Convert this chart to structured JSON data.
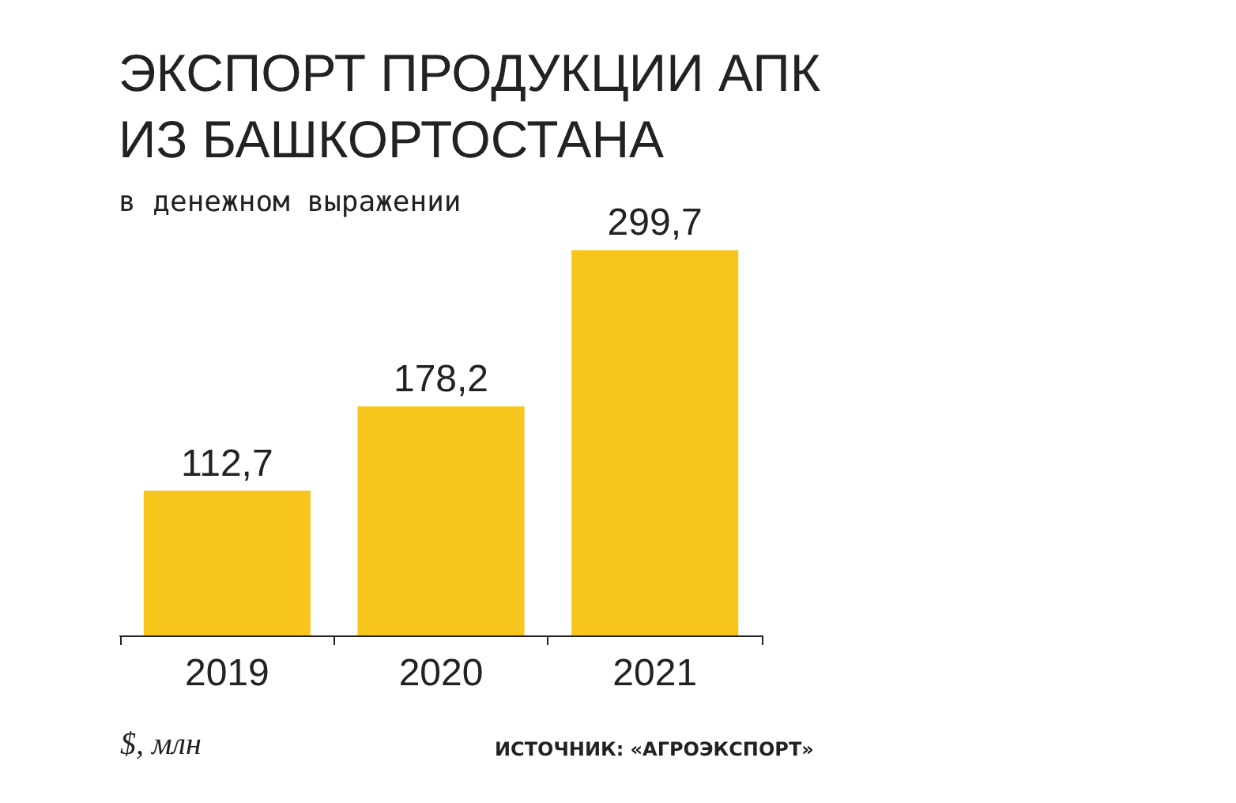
{
  "chart_data": {
    "type": "bar",
    "title": "ЭКСПОРТ ПРОДУКЦИИ АПК\nИЗ БАШКОРТОСТАНА",
    "subtitle": "в денежном выражении",
    "categories": [
      "2019",
      "2020",
      "2021"
    ],
    "values": [
      112.7,
      178.2,
      299.7
    ],
    "color": "#f8c51c",
    "value_labels": [
      "112,7",
      "178,2",
      "299,7"
    ],
    "annotations": [
      "$, млн",
      "ИСТОЧНИК: «АГРОЭКСПОРТ»"
    ]
  }
}
